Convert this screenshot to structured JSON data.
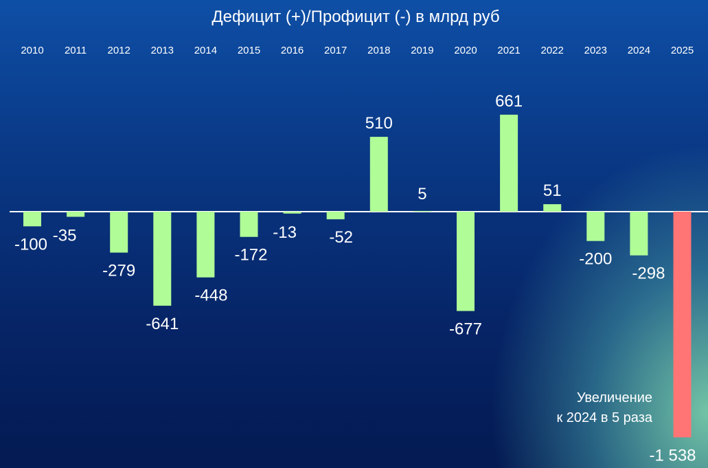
{
  "chart_data": {
    "type": "bar",
    "title": "Дефицит (+)/Профицит (-) в млрд руб",
    "categories": [
      "2010",
      "2011",
      "2012",
      "2013",
      "2014",
      "2015",
      "2016",
      "2017",
      "2018",
      "2019",
      "2020",
      "2021",
      "2022",
      "2023",
      "2024",
      "2025"
    ],
    "values": [
      -100,
      -35,
      -279,
      -641,
      -448,
      -172,
      -13,
      -52,
      510,
      5,
      -677,
      661,
      51,
      -200,
      -298,
      -1538
    ],
    "value_labels": [
      "-100",
      "-35",
      "-279",
      "-641",
      "-448",
      "-172",
      "-13",
      "-52",
      "510",
      "5",
      "-677",
      "661",
      "51",
      "-200",
      "-298",
      "-1 538"
    ],
    "highlight_index": 15,
    "colors": {
      "bar": "#b0fc97",
      "highlight": "#ff7474",
      "text": "#ffffff",
      "axis": "#ffffff"
    },
    "annotation": {
      "line1": "Увеличение",
      "line2": "к 2024 в 5 раза"
    },
    "ylim": [
      -1538,
      661
    ],
    "legend": "none",
    "grid": false
  }
}
